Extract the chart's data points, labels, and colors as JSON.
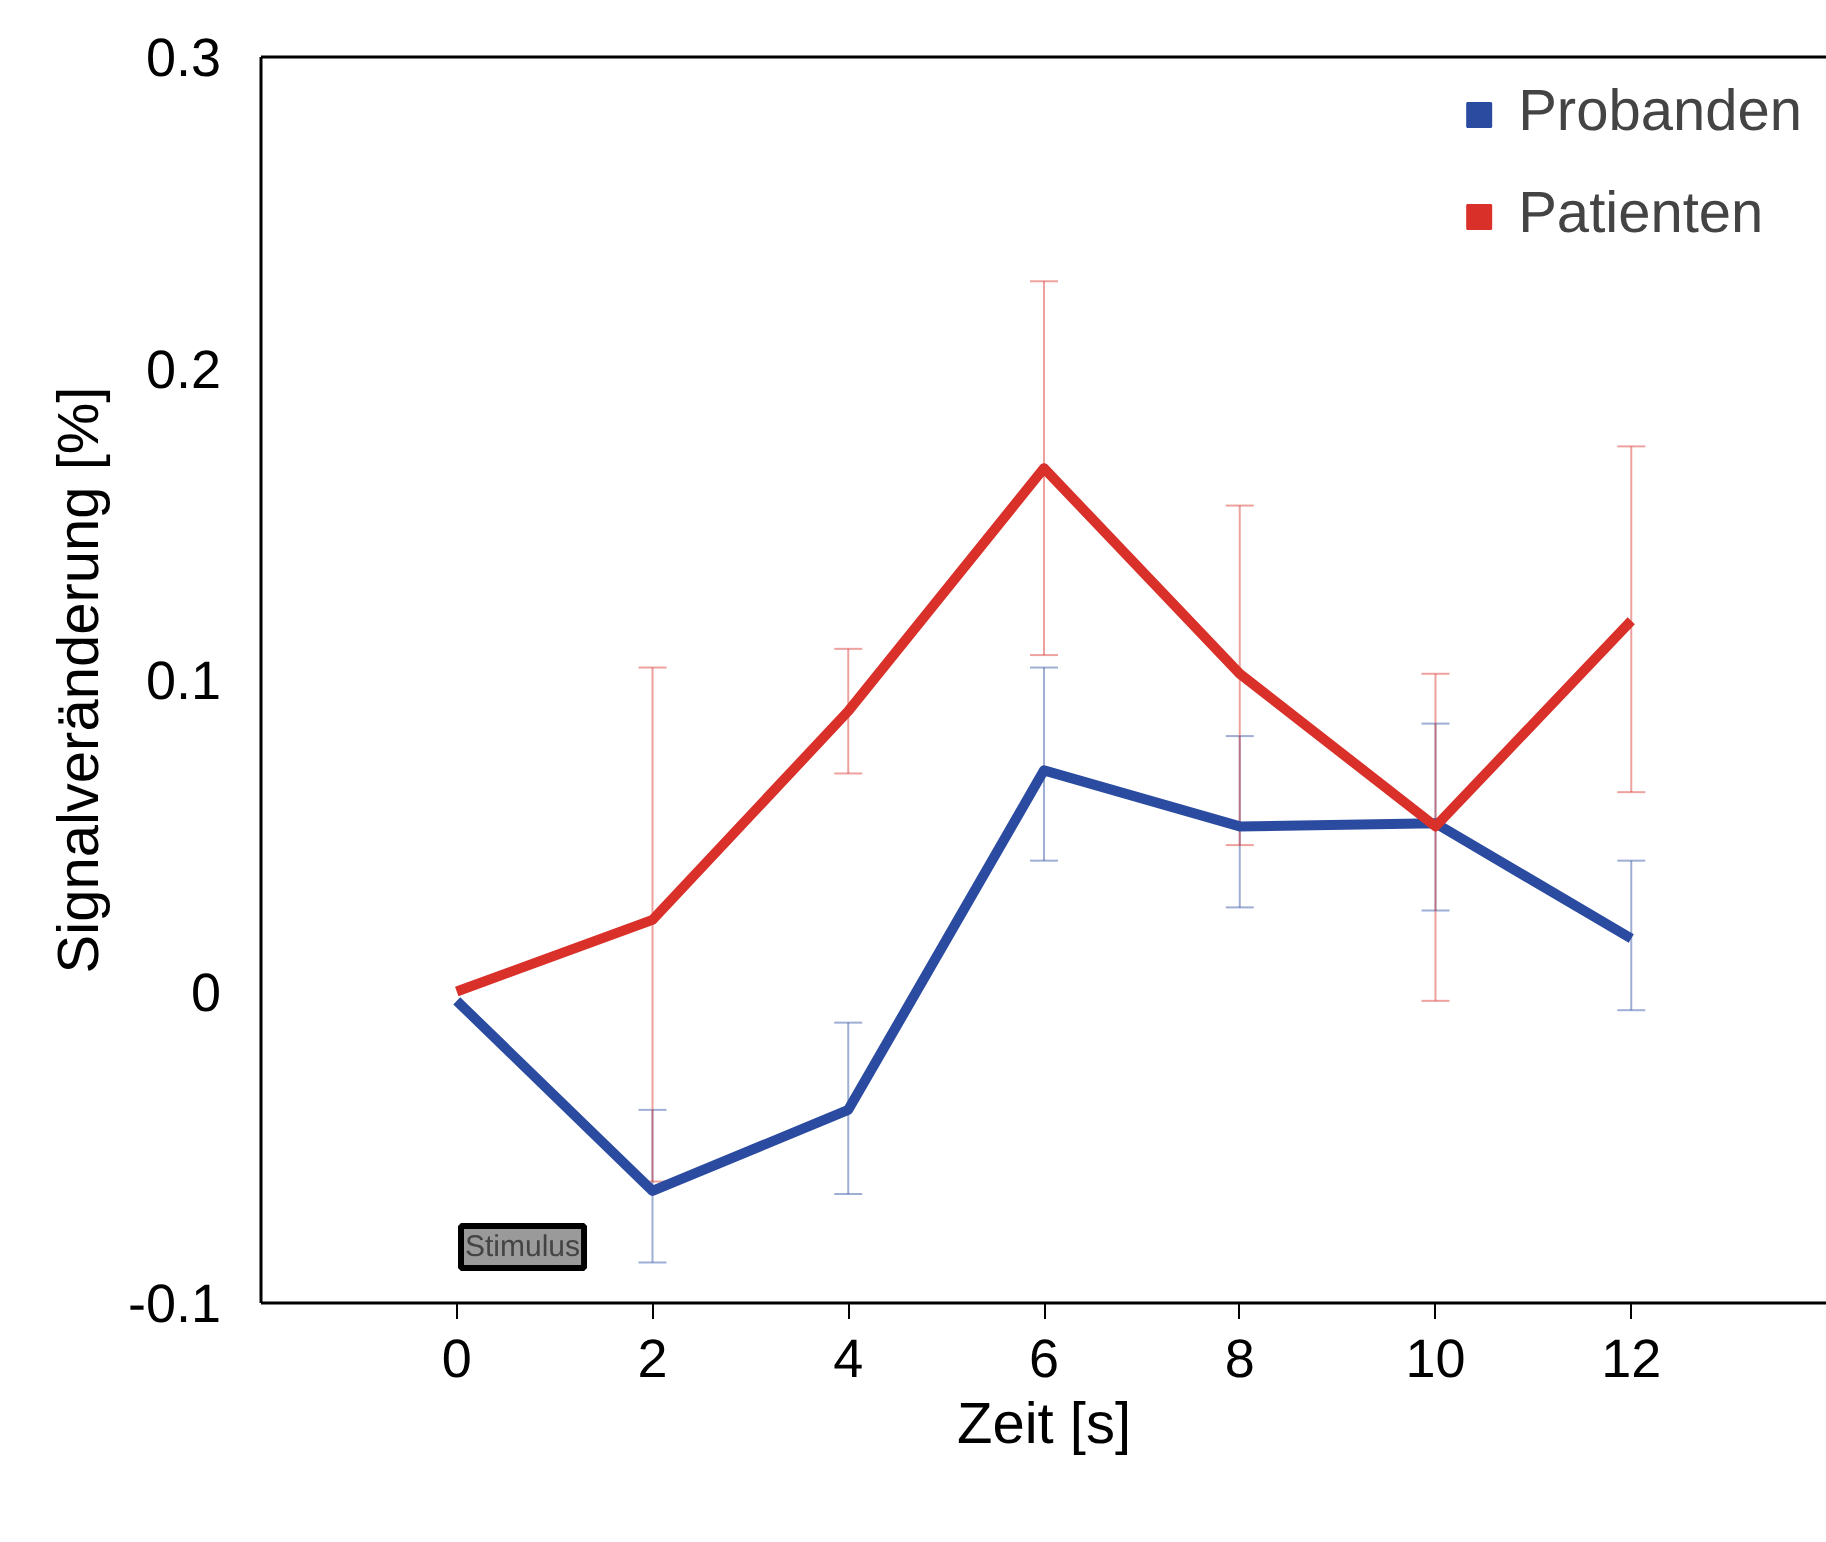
{
  "chart_data": {
    "type": "line",
    "xlabel": "Zeit [s]",
    "ylabel": "Signalveränderung [%]",
    "x": [
      0,
      2,
      4,
      6,
      8,
      10,
      12
    ],
    "series": [
      {
        "name": "Probanden",
        "color": "#2b4ba0",
        "values": [
          -0.003,
          -0.064,
          -0.038,
          0.071,
          0.053,
          0.054,
          0.017
        ],
        "errors": [
          null,
          [
            -0.087,
            -0.038
          ],
          [
            -0.065,
            -0.01
          ],
          [
            0.042,
            0.104
          ],
          [
            0.027,
            0.082
          ],
          [
            0.026,
            0.086
          ],
          [
            -0.006,
            0.042
          ]
        ]
      },
      {
        "name": "Patienten",
        "color": "#d9302a",
        "values": [
          0,
          0.023,
          0.09,
          0.168,
          0.102,
          0.053,
          0.119
        ],
        "errors": [
          null,
          [
            -0.061,
            0.104
          ],
          [
            0.07,
            0.11
          ],
          [
            0.108,
            0.228
          ],
          [
            0.047,
            0.156
          ],
          [
            -0.003,
            0.102
          ],
          [
            0.064,
            0.175
          ]
        ]
      }
    ],
    "xlim": [
      -2,
      14
    ],
    "ylim": [
      -0.1,
      0.3
    ],
    "xticks": [
      0,
      2,
      4,
      6,
      8,
      10,
      12
    ],
    "yticks": [
      -0.1,
      0,
      0.1,
      0.2,
      0.3
    ],
    "annotations": [
      "Stimulus"
    ],
    "grid": false,
    "legend": "top right",
    "marker": "none",
    "line_style": "solid"
  }
}
